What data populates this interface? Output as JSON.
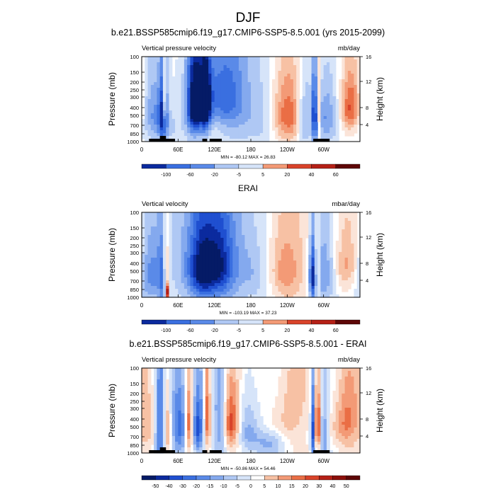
{
  "figure_title": "DJF",
  "colors": {
    "blues": [
      "#051b66",
      "#0b2a9e",
      "#1f4fd0",
      "#3a6fe0",
      "#5a8ae8",
      "#84a9ee",
      "#afc8f4",
      "#d6e4f9"
    ],
    "reds": [
      "#fbe4d8",
      "#f7c1a4",
      "#f39a76",
      "#ea6e45",
      "#d9432a",
      "#b52016",
      "#8d0f0b",
      "#5e0606"
    ],
    "background_neutral": "#ffffff",
    "terrain": "#000000"
  },
  "chart_data": [
    {
      "type": "heatmap",
      "title": "b.e21.BSSP585cmip6.f19_g17.CMIP6-SSP5-8.5.001 (yrs 2015-2099)",
      "left_label": "Vertical pressure velocity",
      "right_label": "mb/day",
      "ylabel": "Pressure (mb)",
      "y2label": "Height (km)",
      "yticks": [
        "100",
        "150",
        "200",
        "250",
        "300",
        "400",
        "500",
        "700",
        "850",
        "1000"
      ],
      "y2ticks": [
        "16",
        "12",
        "8",
        "4"
      ],
      "xticks": [
        "0",
        "60E",
        "120E",
        "180",
        "120W",
        "60W"
      ],
      "stats": "MIN = -80.12  MAX = 26.83",
      "colorbar_labels": [
        "-100",
        "-60",
        "-20",
        "-5",
        "5",
        "20",
        "40",
        "60"
      ],
      "blobs": [
        {
          "lon": 35,
          "p": 500,
          "wx": 5,
          "wp": 380,
          "v": -1.7
        },
        {
          "lon": 37,
          "p": 350,
          "wx": 1.5,
          "wp": 200,
          "v": 1.5
        },
        {
          "lon": 18,
          "p": 450,
          "wx": 14,
          "wp": 350,
          "v": -1.0
        },
        {
          "lon": 88,
          "p": 400,
          "wx": 10,
          "wp": 320,
          "v": -2.8
        },
        {
          "lon": 106,
          "p": 400,
          "wx": 6,
          "wp": 280,
          "v": -2.2
        },
        {
          "lon": 115,
          "p": 250,
          "wx": 24,
          "wp": 200,
          "v": -1.0
        },
        {
          "lon": 148,
          "p": 380,
          "wx": 22,
          "wp": 380,
          "v": -1.2
        },
        {
          "lon": 205,
          "p": 500,
          "wx": 25,
          "wp": 600,
          "v": -0.7
        },
        {
          "lon": 240,
          "p": 500,
          "wx": 22,
          "wp": 380,
          "v": 1.6
        },
        {
          "lon": 268,
          "p": 550,
          "wx": 10,
          "wp": 400,
          "v": -1.3
        },
        {
          "lon": 285,
          "p": 500,
          "wx": 3,
          "wp": 400,
          "v": -1.8
        },
        {
          "lon": 292,
          "p": 450,
          "wx": 2,
          "wp": 300,
          "v": 1.2
        },
        {
          "lon": 305,
          "p": 550,
          "wx": 14,
          "wp": 350,
          "v": -1.1
        },
        {
          "lon": 345,
          "p": 400,
          "wx": 12,
          "wp": 250,
          "v": 1.5
        },
        {
          "lon": 50,
          "p": 700,
          "wx": 20,
          "wp": 250,
          "v": -0.5
        }
      ]
    },
    {
      "type": "heatmap",
      "title": "ERAI",
      "left_label": "Vertical velocity",
      "right_label": "mbar/day",
      "ylabel": "Pressure (mb)",
      "y2label": "Height (km)",
      "yticks": [
        "100",
        "150",
        "200",
        "250",
        "300",
        "400",
        "500",
        "700",
        "850",
        "1000"
      ],
      "y2ticks": [
        "16",
        "12",
        "8",
        "4"
      ],
      "xticks": [
        "0",
        "60E",
        "120E",
        "180",
        "120W",
        "60W"
      ],
      "stats": "MIN = -103.19  MAX = 37.23",
      "colorbar_labels": [
        "-100",
        "-60",
        "-20",
        "-5",
        "5",
        "20",
        "40",
        "60"
      ],
      "blobs": [
        {
          "lon": 15,
          "p": 550,
          "wx": 16,
          "wp": 450,
          "v": -1.2
        },
        {
          "lon": 35,
          "p": 600,
          "wx": 5,
          "wp": 400,
          "v": -1.2
        },
        {
          "lon": 40,
          "p": 500,
          "wx": 4,
          "wp": 350,
          "v": 1.5
        },
        {
          "lon": 42,
          "p": 900,
          "wx": 2,
          "wp": 100,
          "v": 2.2
        },
        {
          "lon": 115,
          "p": 450,
          "wx": 40,
          "wp": 450,
          "v": -1.8
        },
        {
          "lon": 100,
          "p": 500,
          "wx": 14,
          "wp": 350,
          "v": -1.2
        },
        {
          "lon": 130,
          "p": 450,
          "wx": 14,
          "wp": 300,
          "v": -0.8
        },
        {
          "lon": 200,
          "p": 550,
          "wx": 22,
          "wp": 550,
          "v": -0.8
        },
        {
          "lon": 230,
          "p": 500,
          "wx": 28,
          "wp": 450,
          "v": 1.2
        },
        {
          "lon": 282,
          "p": 600,
          "wx": 4,
          "wp": 350,
          "v": -2.0
        },
        {
          "lon": 290,
          "p": 500,
          "wx": 3,
          "wp": 300,
          "v": 1.0
        },
        {
          "lon": 300,
          "p": 550,
          "wx": 14,
          "wp": 400,
          "v": -1.2
        },
        {
          "lon": 340,
          "p": 400,
          "wx": 16,
          "wp": 300,
          "v": 0.9
        }
      ]
    },
    {
      "type": "heatmap",
      "title": "b.e21.BSSP585cmip6.f19_g17.CMIP6-SSP5-8.5.001 - ERAI",
      "left_label": "Vertical pressure velocity",
      "right_label": "mb/day",
      "ylabel": "Pressure (mb)",
      "y2label": "Height (km)",
      "yticks": [
        "100",
        "150",
        "200",
        "250",
        "300",
        "400",
        "500",
        "700",
        "850",
        "1000"
      ],
      "y2ticks": [
        "16",
        "12",
        "8",
        "4"
      ],
      "xticks": [
        "0",
        "60E",
        "120E",
        "180",
        "120W",
        "60W"
      ],
      "stats": "MIN = -50.86  MAX = 54.46",
      "colorbar_labels": [
        "-50",
        "-40",
        "-30",
        "-20",
        "-15",
        "-10",
        "-5",
        "0",
        "5",
        "10",
        "15",
        "20",
        "30",
        "40",
        "50"
      ],
      "blobs": [
        {
          "lon": 10,
          "p": 500,
          "wx": 10,
          "wp": 350,
          "v": 0.6
        },
        {
          "lon": 30,
          "p": 550,
          "wx": 6,
          "wp": 450,
          "v": -1.8
        },
        {
          "lon": 42,
          "p": 550,
          "wx": 4,
          "wp": 400,
          "v": 1.0
        },
        {
          "lon": 62,
          "p": 500,
          "wx": 10,
          "wp": 400,
          "v": -1.6
        },
        {
          "lon": 78,
          "p": 500,
          "wx": 5,
          "wp": 300,
          "v": 2.0
        },
        {
          "lon": 93,
          "p": 500,
          "wx": 7,
          "wp": 400,
          "v": -1.8
        },
        {
          "lon": 108,
          "p": 400,
          "wx": 4,
          "wp": 350,
          "v": 1.5
        },
        {
          "lon": 128,
          "p": 500,
          "wx": 8,
          "wp": 400,
          "v": -1.2
        },
        {
          "lon": 148,
          "p": 450,
          "wx": 9,
          "wp": 300,
          "v": 1.6
        },
        {
          "lon": 175,
          "p": 550,
          "wx": 12,
          "wp": 400,
          "v": -0.6
        },
        {
          "lon": 210,
          "p": 800,
          "wx": 20,
          "wp": 200,
          "v": -0.9
        },
        {
          "lon": 250,
          "p": 400,
          "wx": 20,
          "wp": 350,
          "v": 0.7
        },
        {
          "lon": 283,
          "p": 550,
          "wx": 3,
          "wp": 400,
          "v": -2.4
        },
        {
          "lon": 290,
          "p": 500,
          "wx": 4,
          "wp": 300,
          "v": 2.2
        },
        {
          "lon": 300,
          "p": 600,
          "wx": 6,
          "wp": 400,
          "v": -1.2
        },
        {
          "lon": 340,
          "p": 450,
          "wx": 14,
          "wp": 300,
          "v": 1.3
        }
      ]
    }
  ]
}
